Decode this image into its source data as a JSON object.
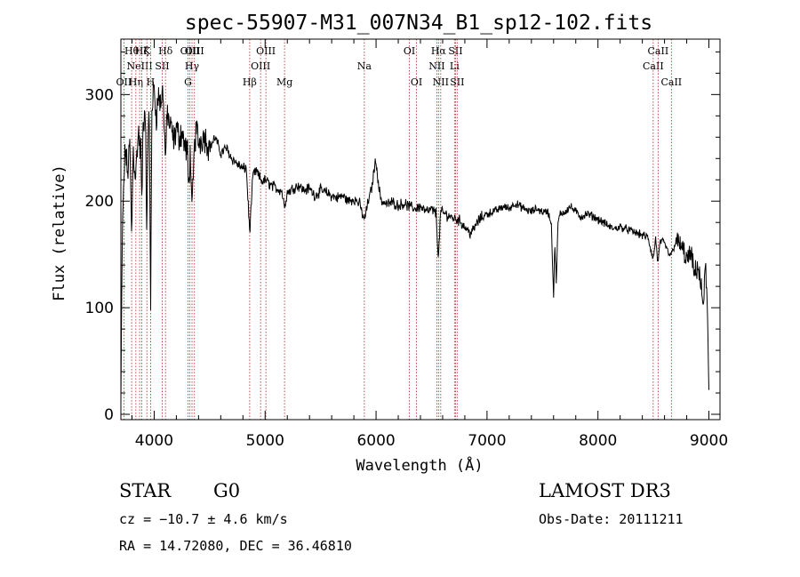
{
  "chart_data": {
    "type": "line",
    "title": "spec-55907-M31_007N34_B1_sp12-102.fits",
    "xlabel": "Wavelength (Å)",
    "ylabel": "Flux (relative)",
    "xlim": [
      3700,
      9100
    ],
    "ylim": [
      -5,
      352
    ],
    "xticks": [
      4000,
      5000,
      6000,
      7000,
      8000,
      9000
    ],
    "yticks": [
      0,
      100,
      200,
      300
    ],
    "grid": false,
    "series": [
      {
        "name": "flux",
        "color": "#000000",
        "anchors": [
          [
            3700,
            10
          ],
          [
            3712,
            160
          ],
          [
            3725,
            215
          ],
          [
            3740,
            250
          ],
          [
            3760,
            225
          ],
          [
            3780,
            255
          ],
          [
            3798,
            165
          ],
          [
            3810,
            250
          ],
          [
            3825,
            230
          ],
          [
            3835,
            225
          ],
          [
            3850,
            255
          ],
          [
            3860,
            265
          ],
          [
            3870,
            248
          ],
          [
            3880,
            250
          ],
          [
            3888,
            195
          ],
          [
            3900,
            270
          ],
          [
            3915,
            285
          ],
          [
            3925,
            265
          ],
          [
            3933,
            150
          ],
          [
            3945,
            275
          ],
          [
            3955,
            280
          ],
          [
            3968,
            100
          ],
          [
            3980,
            290
          ],
          [
            4000,
            305
          ],
          [
            4020,
            280
          ],
          [
            4040,
            300
          ],
          [
            4060,
            290
          ],
          [
            4080,
            305
          ],
          [
            4101,
            240
          ],
          [
            4120,
            285
          ],
          [
            4140,
            270
          ],
          [
            4160,
            265
          ],
          [
            4180,
            255
          ],
          [
            4200,
            270
          ],
          [
            4220,
            260
          ],
          [
            4250,
            265
          ],
          [
            4280,
            250
          ],
          [
            4300,
            245
          ],
          [
            4310,
            210
          ],
          [
            4326,
            250
          ],
          [
            4340,
            185
          ],
          [
            4360,
            245
          ],
          [
            4380,
            270
          ],
          [
            4400,
            255
          ],
          [
            4420,
            258
          ],
          [
            4450,
            262
          ],
          [
            4480,
            255
          ],
          [
            4500,
            250
          ],
          [
            4550,
            260
          ],
          [
            4600,
            245
          ],
          [
            4650,
            250
          ],
          [
            4700,
            240
          ],
          [
            4750,
            235
          ],
          [
            4800,
            230
          ],
          [
            4830,
            232
          ],
          [
            4861,
            170
          ],
          [
            4890,
            225
          ],
          [
            4920,
            228
          ],
          [
            4950,
            222
          ],
          [
            4980,
            218
          ],
          [
            5000,
            220
          ],
          [
            5050,
            215
          ],
          [
            5100,
            212
          ],
          [
            5150,
            210
          ],
          [
            5173,
            195
          ],
          [
            5200,
            208
          ],
          [
            5250,
            212
          ],
          [
            5300,
            215
          ],
          [
            5350,
            210
          ],
          [
            5400,
            212
          ],
          [
            5450,
            205
          ],
          [
            5500,
            210
          ],
          [
            5550,
            208
          ],
          [
            5600,
            205
          ],
          [
            5650,
            203
          ],
          [
            5700,
            205
          ],
          [
            5750,
            200
          ],
          [
            5800,
            202
          ],
          [
            5850,
            198
          ],
          [
            5893,
            182
          ],
          [
            5930,
            200
          ],
          [
            5960,
            212
          ],
          [
            5980,
            228
          ],
          [
            6000,
            240
          ],
          [
            6020,
            215
          ],
          [
            6050,
            200
          ],
          [
            6100,
            197
          ],
          [
            6150,
            199
          ],
          [
            6200,
            196
          ],
          [
            6250,
            198
          ],
          [
            6300,
            195
          ],
          [
            6350,
            193
          ],
          [
            6400,
            195
          ],
          [
            6450,
            190
          ],
          [
            6500,
            192
          ],
          [
            6540,
            189
          ],
          [
            6563,
            145
          ],
          [
            6580,
            190
          ],
          [
            6620,
            188
          ],
          [
            6660,
            186
          ],
          [
            6700,
            184
          ],
          [
            6750,
            182
          ],
          [
            6800,
            176
          ],
          [
            6850,
            170
          ],
          [
            6880,
            173
          ],
          [
            6900,
            178
          ],
          [
            6950,
            185
          ],
          [
            7000,
            188
          ],
          [
            7050,
            190
          ],
          [
            7100,
            192
          ],
          [
            7150,
            195
          ],
          [
            7200,
            193
          ],
          [
            7250,
            198
          ],
          [
            7300,
            195
          ],
          [
            7350,
            192
          ],
          [
            7400,
            190
          ],
          [
            7450,
            193
          ],
          [
            7500,
            190
          ],
          [
            7550,
            190
          ],
          [
            7580,
            178
          ],
          [
            7600,
            110
          ],
          [
            7610,
            158
          ],
          [
            7625,
            125
          ],
          [
            7640,
            180
          ],
          [
            7660,
            188
          ],
          [
            7700,
            190
          ],
          [
            7750,
            195
          ],
          [
            7800,
            190
          ],
          [
            7850,
            185
          ],
          [
            7900,
            188
          ],
          [
            7950,
            186
          ],
          [
            8000,
            183
          ],
          [
            8050,
            180
          ],
          [
            8100,
            176
          ],
          [
            8150,
            174
          ],
          [
            8200,
            176
          ],
          [
            8250,
            174
          ],
          [
            8300,
            172
          ],
          [
            8350,
            170
          ],
          [
            8400,
            168
          ],
          [
            8450,
            166
          ],
          [
            8498,
            145
          ],
          [
            8520,
            165
          ],
          [
            8542,
            140
          ],
          [
            8560,
            163
          ],
          [
            8600,
            160
          ],
          [
            8640,
            150
          ],
          [
            8662,
            150
          ],
          [
            8700,
            162
          ],
          [
            8750,
            158
          ],
          [
            8780,
            150
          ],
          [
            8800,
            145
          ],
          [
            8840,
            150
          ],
          [
            8870,
            130
          ],
          [
            8900,
            140
          ],
          [
            8930,
            118
          ],
          [
            8950,
            102
          ],
          [
            8970,
            140
          ],
          [
            8985,
            105
          ],
          [
            9000,
            20
          ]
        ]
      }
    ],
    "line_markers": [
      {
        "label": "OII",
        "wl": 3727,
        "row": 2
      },
      {
        "label": "Hθ",
        "wl": 3797,
        "row": 0
      },
      {
        "label": "Hη",
        "wl": 3835,
        "row": 2
      },
      {
        "label": "NeIII",
        "wl": 3869,
        "row": 1
      },
      {
        "label": "Hζ",
        "wl": 3889,
        "row": 0
      },
      {
        "label": "K",
        "wl": 3934,
        "row": 0
      },
      {
        "label": "H",
        "wl": 3968,
        "row": 2
      },
      {
        "label": "Hδ",
        "wl": 4102,
        "row": 0
      },
      {
        "label": "SII",
        "wl": 4072,
        "row": 1
      },
      {
        "label": "OIII",
        "wl": 4322,
        "row": 0
      },
      {
        "label": "G",
        "wl": 4305,
        "row": 2
      },
      {
        "label": "Hγ",
        "wl": 4341,
        "row": 1
      },
      {
        "label": "OIII",
        "wl": 4363,
        "row": 0
      },
      {
        "label": "Hβ",
        "wl": 4861,
        "row": 2
      },
      {
        "label": "OIII",
        "wl": 4959,
        "row": 1
      },
      {
        "label": "OIII",
        "wl": 5007,
        "row": 0
      },
      {
        "label": "Mg",
        "wl": 5175,
        "row": 2
      },
      {
        "label": "Na",
        "wl": 5894,
        "row": 1
      },
      {
        "label": "OI",
        "wl": 6300,
        "row": 0
      },
      {
        "label": "OI",
        "wl": 6364,
        "row": 2
      },
      {
        "label": "NII",
        "wl": 6548,
        "row": 1
      },
      {
        "label": "Hα",
        "wl": 6563,
        "row": 0
      },
      {
        "label": "NII",
        "wl": 6583,
        "row": 2
      },
      {
        "label": "Li",
        "wl": 6707,
        "row": 1
      },
      {
        "label": "SII",
        "wl": 6716,
        "row": 0
      },
      {
        "label": "SII",
        "wl": 6731,
        "row": 2
      },
      {
        "label": "CaII",
        "wl": 8498,
        "row": 1
      },
      {
        "label": "CaII",
        "wl": 8542,
        "row": 0
      },
      {
        "label": "CaII",
        "wl": 8662,
        "row": 2
      }
    ]
  },
  "info": {
    "object_class": "STAR",
    "subclass": "G0",
    "survey": "LAMOST DR3",
    "cz": "cz = −10.7 ± 4.6 km/s",
    "obs_date": "Obs-Date: 20111211",
    "coords": "RA =  14.72080, DEC =  36.46810"
  },
  "colors": {
    "spectrum": "#000000",
    "marker_line": "#b22222",
    "axes": "#000000"
  }
}
